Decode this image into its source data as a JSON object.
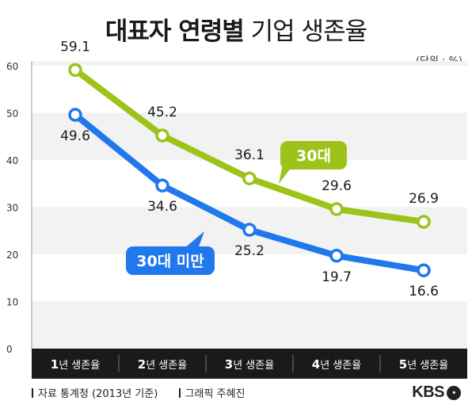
{
  "title": {
    "bold": "대표자 연령별",
    "light": "기업 생존율"
  },
  "unit_label": "(단위 : %)",
  "footer": {
    "source": "자료 통계청 (2013년 기준)",
    "graphic": "그래픽 주혜진"
  },
  "logo": "KBS",
  "colors": {
    "green": "#9dc31a",
    "blue": "#1f78ec",
    "axis_bg": "#1a1a1a",
    "plot_bg": "#f2f2f2"
  },
  "chart_data": {
    "type": "line",
    "categories": [
      "1년 생존율",
      "2년 생존율",
      "3년 생존율",
      "4년 생존율",
      "5년 생존율"
    ],
    "series": [
      {
        "name": "30대",
        "values": [
          59.1,
          45.2,
          36.1,
          29.6,
          26.9
        ],
        "labels": [
          "59.1",
          "45.2",
          "36.1",
          "29.6",
          "26.9"
        ],
        "color": "#9dc31a"
      },
      {
        "name": "30대 미만",
        "values": [
          49.6,
          34.6,
          25.2,
          19.7,
          16.6
        ],
        "labels": [
          "49.6",
          "34.6",
          "25.2",
          "19.7",
          "16.6"
        ],
        "color": "#1f78ec"
      }
    ],
    "yticks": [
      0,
      10,
      20,
      30,
      40,
      50,
      60
    ],
    "ylim": [
      0,
      60
    ],
    "grid": "alternating bands"
  }
}
